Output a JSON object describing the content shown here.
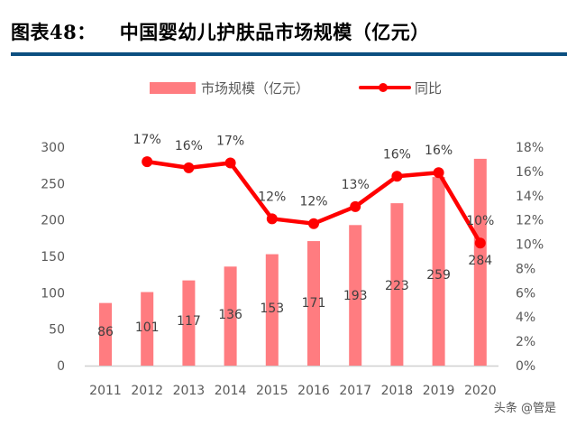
{
  "header": {
    "figure_no": "图表48：",
    "title": "中国婴幼儿护肤品市场规模（亿元）"
  },
  "watermark": "头条 @管是",
  "chart_data": {
    "type": "bar+line",
    "title": "中国婴幼儿护肤品市场规模（亿元）",
    "categories": [
      "2011",
      "2012",
      "2013",
      "2014",
      "2015",
      "2016",
      "2017",
      "2018",
      "2019",
      "2020"
    ],
    "series": [
      {
        "name": "市场规模（亿元）",
        "type": "bar",
        "axis": "left",
        "color": "#ff7c80",
        "values": [
          86,
          101,
          117,
          136,
          153,
          171,
          193,
          223,
          259,
          284
        ],
        "labels": [
          "86",
          "101",
          "117",
          "136",
          "153",
          "171",
          "193",
          "223",
          "259",
          "284"
        ]
      },
      {
        "name": "同比",
        "type": "line",
        "axis": "right",
        "color": "#ff0000",
        "values": [
          null,
          16.8,
          16.3,
          16.7,
          12.1,
          11.7,
          13.1,
          15.6,
          15.9,
          10.1
        ],
        "labels": [
          "",
          "17%",
          "16%",
          "17%",
          "12%",
          "12%",
          "13%",
          "16%",
          "16%",
          "10%"
        ]
      }
    ],
    "y_left": {
      "range": [
        0,
        300
      ],
      "ticks": [
        "0",
        "50",
        "100",
        "150",
        "200",
        "250",
        "300"
      ]
    },
    "y_right": {
      "range": [
        0,
        18
      ],
      "ticks": [
        "0%",
        "2%",
        "4%",
        "6%",
        "8%",
        "10%",
        "12%",
        "14%",
        "16%",
        "18%"
      ]
    },
    "grid": false,
    "legend": "top-center"
  }
}
